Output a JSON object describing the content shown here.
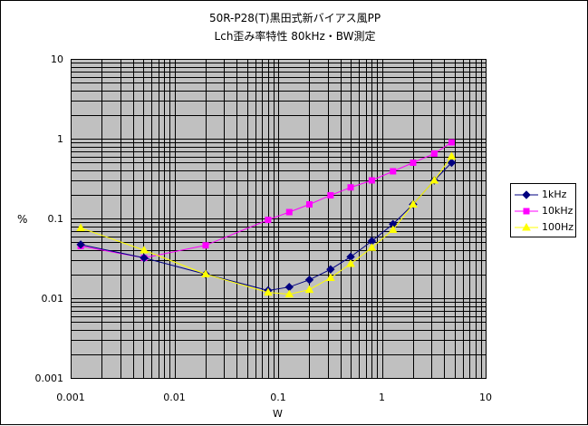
{
  "chart_data": {
    "type": "line",
    "title": "50R-P28(T)黒田式新バイアス風PP",
    "subtitle": "Lch歪み率特性  80kHz・BW測定",
    "xlabel": "W",
    "ylabel": "%",
    "xscale": "log",
    "yscale": "log",
    "xlim": [
      0.001,
      10
    ],
    "ylim": [
      0.001,
      10
    ],
    "x_ticks": [
      "0.001",
      "0.01",
      "0.1",
      "1",
      "10"
    ],
    "y_ticks": [
      "10",
      "1",
      "0.1",
      "0.01",
      "0.001"
    ],
    "grid": true,
    "plot_background": "#c0c0c0",
    "legend_position": "right",
    "series": [
      {
        "name": "1kHz",
        "color": "#000080",
        "marker": "diamond",
        "points": [
          [
            0.00125,
            0.047
          ],
          [
            0.0051,
            0.032
          ],
          [
            0.02,
            0.02
          ],
          [
            0.08,
            0.0125
          ],
          [
            0.128,
            0.0138
          ],
          [
            0.2,
            0.017
          ],
          [
            0.32,
            0.023
          ],
          [
            0.5,
            0.033
          ],
          [
            0.8,
            0.052
          ],
          [
            1.28,
            0.085
          ],
          [
            2.0,
            0.15
          ],
          [
            3.2,
            0.3
          ],
          [
            4.7,
            0.5
          ]
        ]
      },
      {
        "name": "10kHz",
        "color": "#ff00ff",
        "marker": "square",
        "points": [
          [
            0.00125,
            0.045
          ],
          [
            0.0051,
            0.032
          ],
          [
            0.02,
            0.046
          ],
          [
            0.08,
            0.096
          ],
          [
            0.128,
            0.12
          ],
          [
            0.2,
            0.15
          ],
          [
            0.32,
            0.195
          ],
          [
            0.5,
            0.245
          ],
          [
            0.8,
            0.3
          ],
          [
            1.28,
            0.39
          ],
          [
            2.0,
            0.5
          ],
          [
            3.2,
            0.65
          ],
          [
            4.7,
            0.9
          ]
        ]
      },
      {
        "name": "100Hz",
        "color": "#ffff00",
        "marker": "triangle",
        "points": [
          [
            0.00125,
            0.076
          ],
          [
            0.0051,
            0.04
          ],
          [
            0.02,
            0.02
          ],
          [
            0.08,
            0.0118
          ],
          [
            0.128,
            0.0112
          ],
          [
            0.2,
            0.0128
          ],
          [
            0.32,
            0.018
          ],
          [
            0.5,
            0.027
          ],
          [
            0.8,
            0.043
          ],
          [
            1.28,
            0.072
          ],
          [
            2.0,
            0.15
          ],
          [
            3.2,
            0.3
          ],
          [
            4.7,
            0.6
          ]
        ]
      }
    ]
  }
}
